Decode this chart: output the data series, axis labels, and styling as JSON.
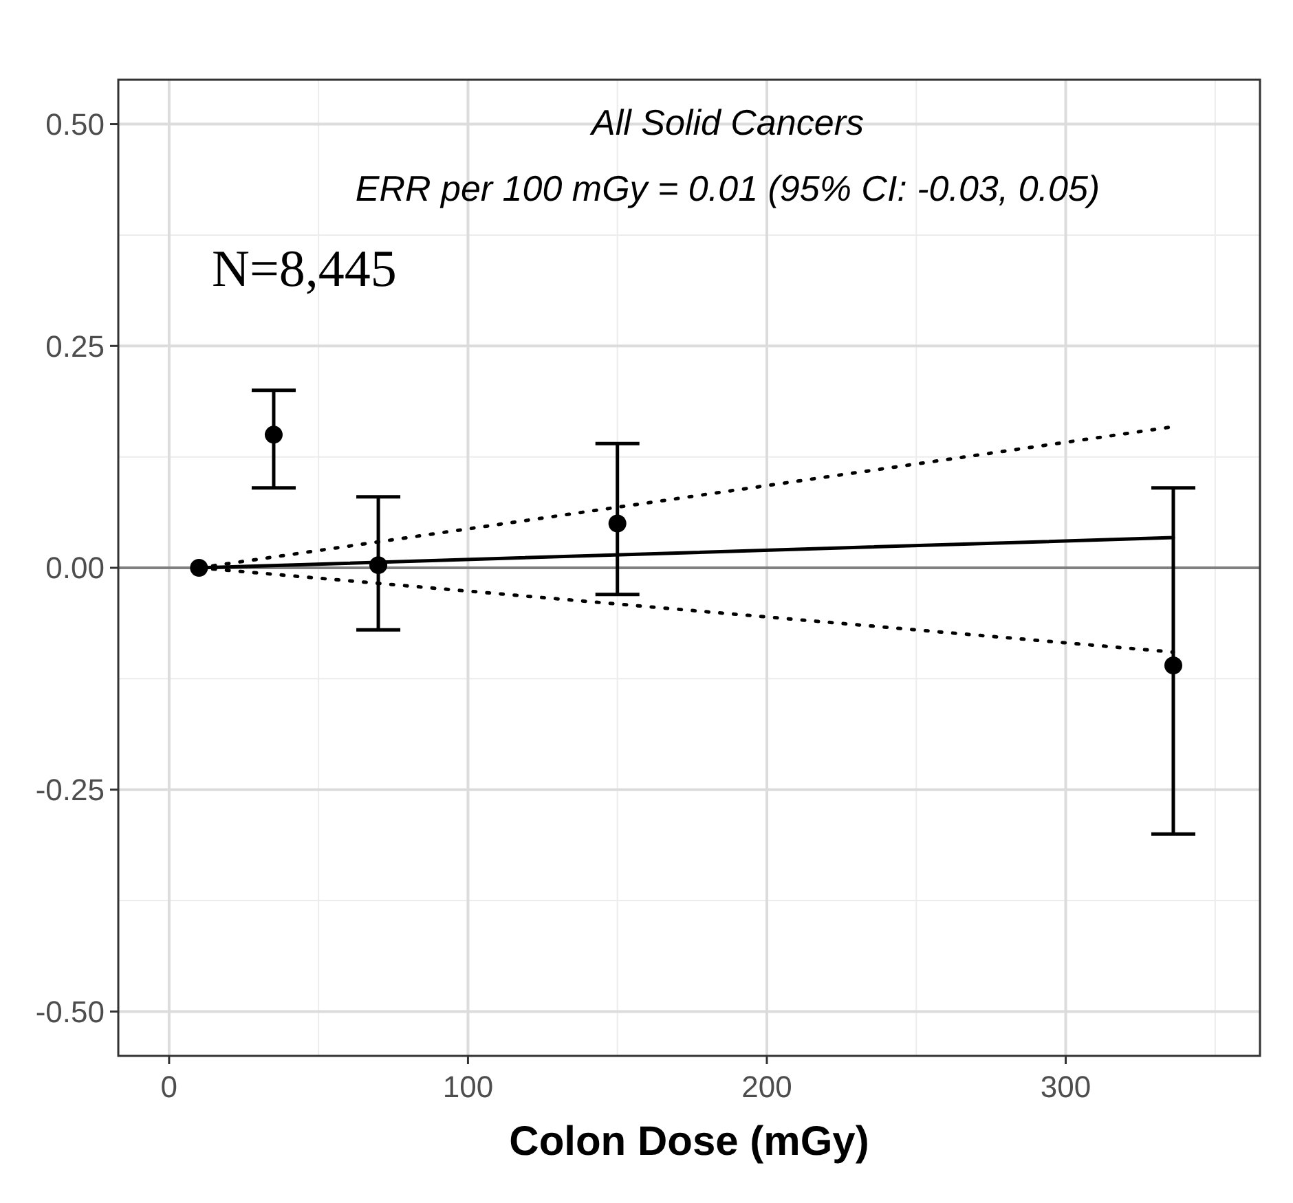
{
  "chart_data": {
    "type": "scatter",
    "xlabel": "Colon Dose (mGy)",
    "xlim": [
      -17,
      365
    ],
    "xticks": [
      0,
      100,
      200,
      300
    ],
    "ylim": [
      -0.55,
      0.55
    ],
    "yticks": [
      {
        "value": -0.5,
        "label": "-0.50"
      },
      {
        "value": -0.25,
        "label": "-0.25"
      },
      {
        "value": 0,
        "label": "0.00"
      },
      {
        "value": 0.25,
        "label": "0.25"
      },
      {
        "value": 0.5,
        "label": "0.50"
      }
    ],
    "grid": true,
    "annotations": [
      "All Solid Cancers",
      "ERR per 100 mGy = 0.01 (95% CI: -0.03, 0.05)",
      "N=8,445"
    ],
    "ref_lines": [
      {
        "axis": "y",
        "value": 0,
        "color": "#808080"
      }
    ],
    "series": [
      {
        "color": "#000000",
        "marker": "circle",
        "x": [
          10,
          35,
          70,
          150,
          336
        ],
        "values": [
          0,
          0.15,
          0.003,
          0.05,
          -0.11
        ],
        "errors": [
          null,
          [
            0.09,
            0.2
          ],
          [
            -0.07,
            0.08
          ],
          [
            -0.03,
            0.14
          ],
          [
            -0.3,
            0.09
          ]
        ]
      },
      {
        "type": "line",
        "color": "#000000",
        "line_style": "solid",
        "x": [
          10,
          336
        ],
        "values": [
          0,
          0.034
        ]
      },
      {
        "type": "line",
        "color": "#000000",
        "line_style": "dotted",
        "x": [
          10,
          336
        ],
        "values": [
          0,
          0.159
        ]
      },
      {
        "type": "line",
        "color": "#000000",
        "line_style": "dotted",
        "x": [
          10,
          336
        ],
        "values": [
          0,
          -0.095
        ]
      }
    ]
  }
}
